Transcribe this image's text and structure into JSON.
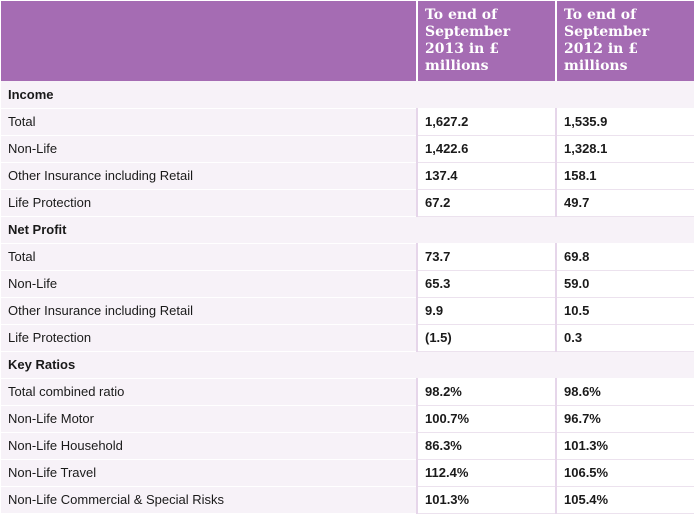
{
  "header": {
    "col1": "",
    "col2": "To end of September 2013 in £ millions",
    "col3": "To end of September 2012 in £ millions"
  },
  "sections": [
    {
      "title": "Income",
      "rows": [
        {
          "label": "Total",
          "v2013": "1,627.2",
          "v2012": "1,535.9"
        },
        {
          "label": "Non-Life",
          "v2013": "1,422.6",
          "v2012": "1,328.1"
        },
        {
          "label": "Other Insurance including Retail",
          "v2013": "137.4",
          "v2012": "158.1"
        },
        {
          "label": "Life Protection",
          "v2013": "67.2",
          "v2012": "49.7"
        }
      ]
    },
    {
      "title": "Net Profit",
      "rows": [
        {
          "label": "Total",
          "v2013": "73.7",
          "v2012": "69.8"
        },
        {
          "label": "Non-Life",
          "v2013": "65.3",
          "v2012": "59.0"
        },
        {
          "label": "Other Insurance including Retail",
          "v2013": "9.9",
          "v2012": "10.5"
        },
        {
          "label": "Life Protection",
          "v2013": "(1.5)",
          "v2012": "0.3"
        }
      ]
    },
    {
      "title": "Key Ratios",
      "rows": [
        {
          "label": "Total combined ratio",
          "v2013": "98.2%",
          "v2012": "98.6%"
        },
        {
          "label": "Non-Life Motor",
          "v2013": "100.7%",
          "v2012": "96.7%"
        },
        {
          "label": "Non-Life Household",
          "v2013": "86.3%",
          "v2012": "101.3%"
        },
        {
          "label": "Non-Life Travel",
          "v2013": "112.4%",
          "v2012": "106.5%"
        },
        {
          "label": "Non-Life Commercial & Special Risks",
          "v2013": "101.3%",
          "v2012": "105.4%"
        }
      ]
    }
  ],
  "colors": {
    "header_bg": "#a56cb3",
    "label_bg": "#f7f2f8",
    "value_bg": "#ffffff"
  }
}
